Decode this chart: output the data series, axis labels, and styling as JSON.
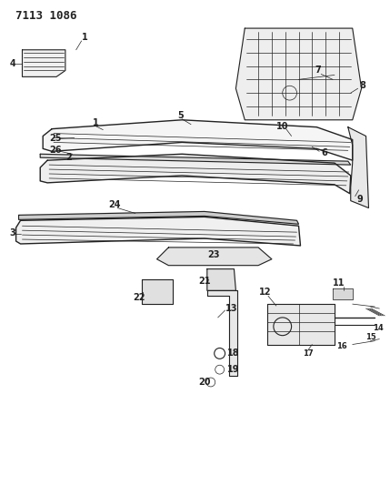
{
  "title": "7113 1086",
  "bg_color": "#ffffff",
  "line_color": "#222222",
  "title_fontsize": 9,
  "label_fontsize": 7,
  "fig_width": 4.29,
  "fig_height": 5.33,
  "dpi": 100
}
